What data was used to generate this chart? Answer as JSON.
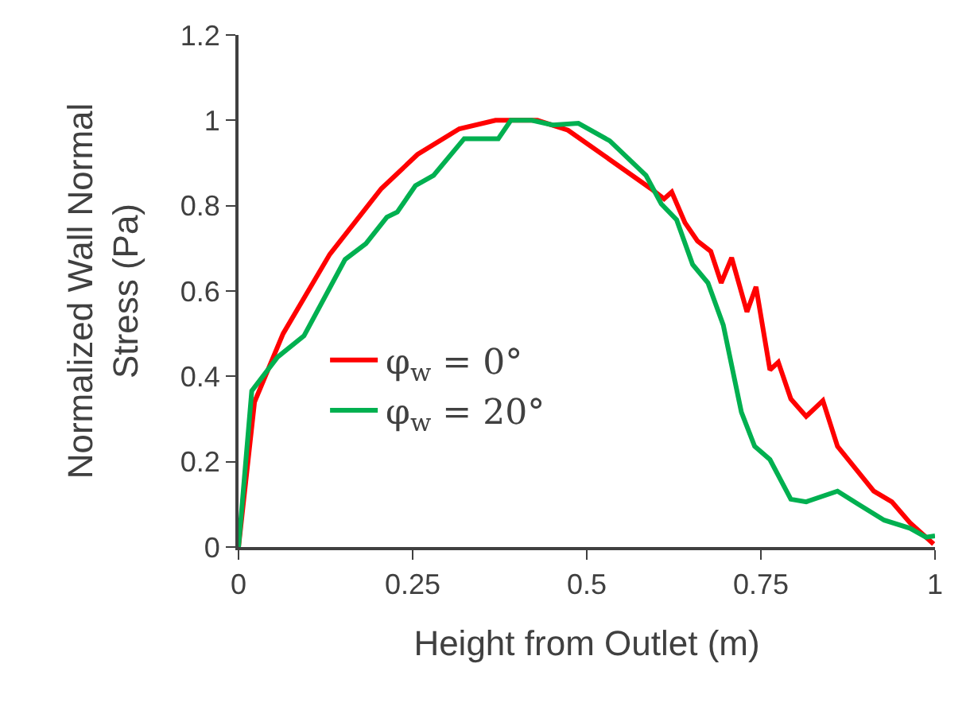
{
  "chart_data": {
    "type": "line",
    "xlabel": "Height from Outlet (m)",
    "ylabel": "Normalized Wall Normal\nStress (Pa)",
    "xlim": [
      0,
      1
    ],
    "xticks": [
      0,
      0.25,
      0.5,
      0.75,
      1
    ],
    "ylim": [
      0,
      1.2
    ],
    "yticks": [
      0,
      0.2,
      0.4,
      0.6,
      0.8,
      1,
      1.2
    ],
    "legend": "left",
    "marker": "none",
    "line_style": "solid",
    "series": [
      {
        "name": "φ$_{w}$ = 0°",
        "color": "#ff0000",
        "x": [
          0,
          0.023,
          0.064,
          0.131,
          0.205,
          0.257,
          0.317,
          0.369,
          0.429,
          0.473,
          0.533,
          0.592,
          0.611,
          0.622,
          0.641,
          0.659,
          0.678,
          0.693,
          0.708,
          0.73,
          0.743,
          0.763,
          0.775,
          0.793,
          0.815,
          0.839,
          0.86,
          0.912,
          0.938,
          0.964,
          0.998
        ],
        "values": [
          0,
          0.34,
          0.5,
          0.686,
          0.84,
          0.92,
          0.98,
          1.0,
          1.0,
          0.977,
          0.908,
          0.84,
          0.816,
          0.832,
          0.76,
          0.717,
          0.693,
          0.619,
          0.678,
          0.551,
          0.61,
          0.415,
          0.433,
          0.347,
          0.306,
          0.343,
          0.236,
          0.131,
          0.106,
          0.057,
          0.007
        ]
      },
      {
        "name": "φ$_{w}$ = 20°",
        "color": "#00b050",
        "x": [
          0,
          0.019,
          0.056,
          0.094,
          0.153,
          0.183,
          0.213,
          0.228,
          0.254,
          0.28,
          0.324,
          0.373,
          0.391,
          0.421,
          0.451,
          0.488,
          0.533,
          0.585,
          0.607,
          0.629,
          0.652,
          0.674,
          0.696,
          0.722,
          0.741,
          0.763,
          0.793,
          0.815,
          0.86,
          0.89,
          0.927,
          0.964,
          0.987,
          1.0
        ],
        "values": [
          0,
          0.366,
          0.445,
          0.495,
          0.674,
          0.711,
          0.773,
          0.785,
          0.847,
          0.871,
          0.957,
          0.957,
          1.0,
          1.0,
          0.989,
          0.993,
          0.952,
          0.871,
          0.804,
          0.767,
          0.662,
          0.619,
          0.52,
          0.316,
          0.236,
          0.205,
          0.112,
          0.106,
          0.131,
          0.1,
          0.063,
          0.044,
          0.023,
          0.026
        ]
      }
    ]
  }
}
